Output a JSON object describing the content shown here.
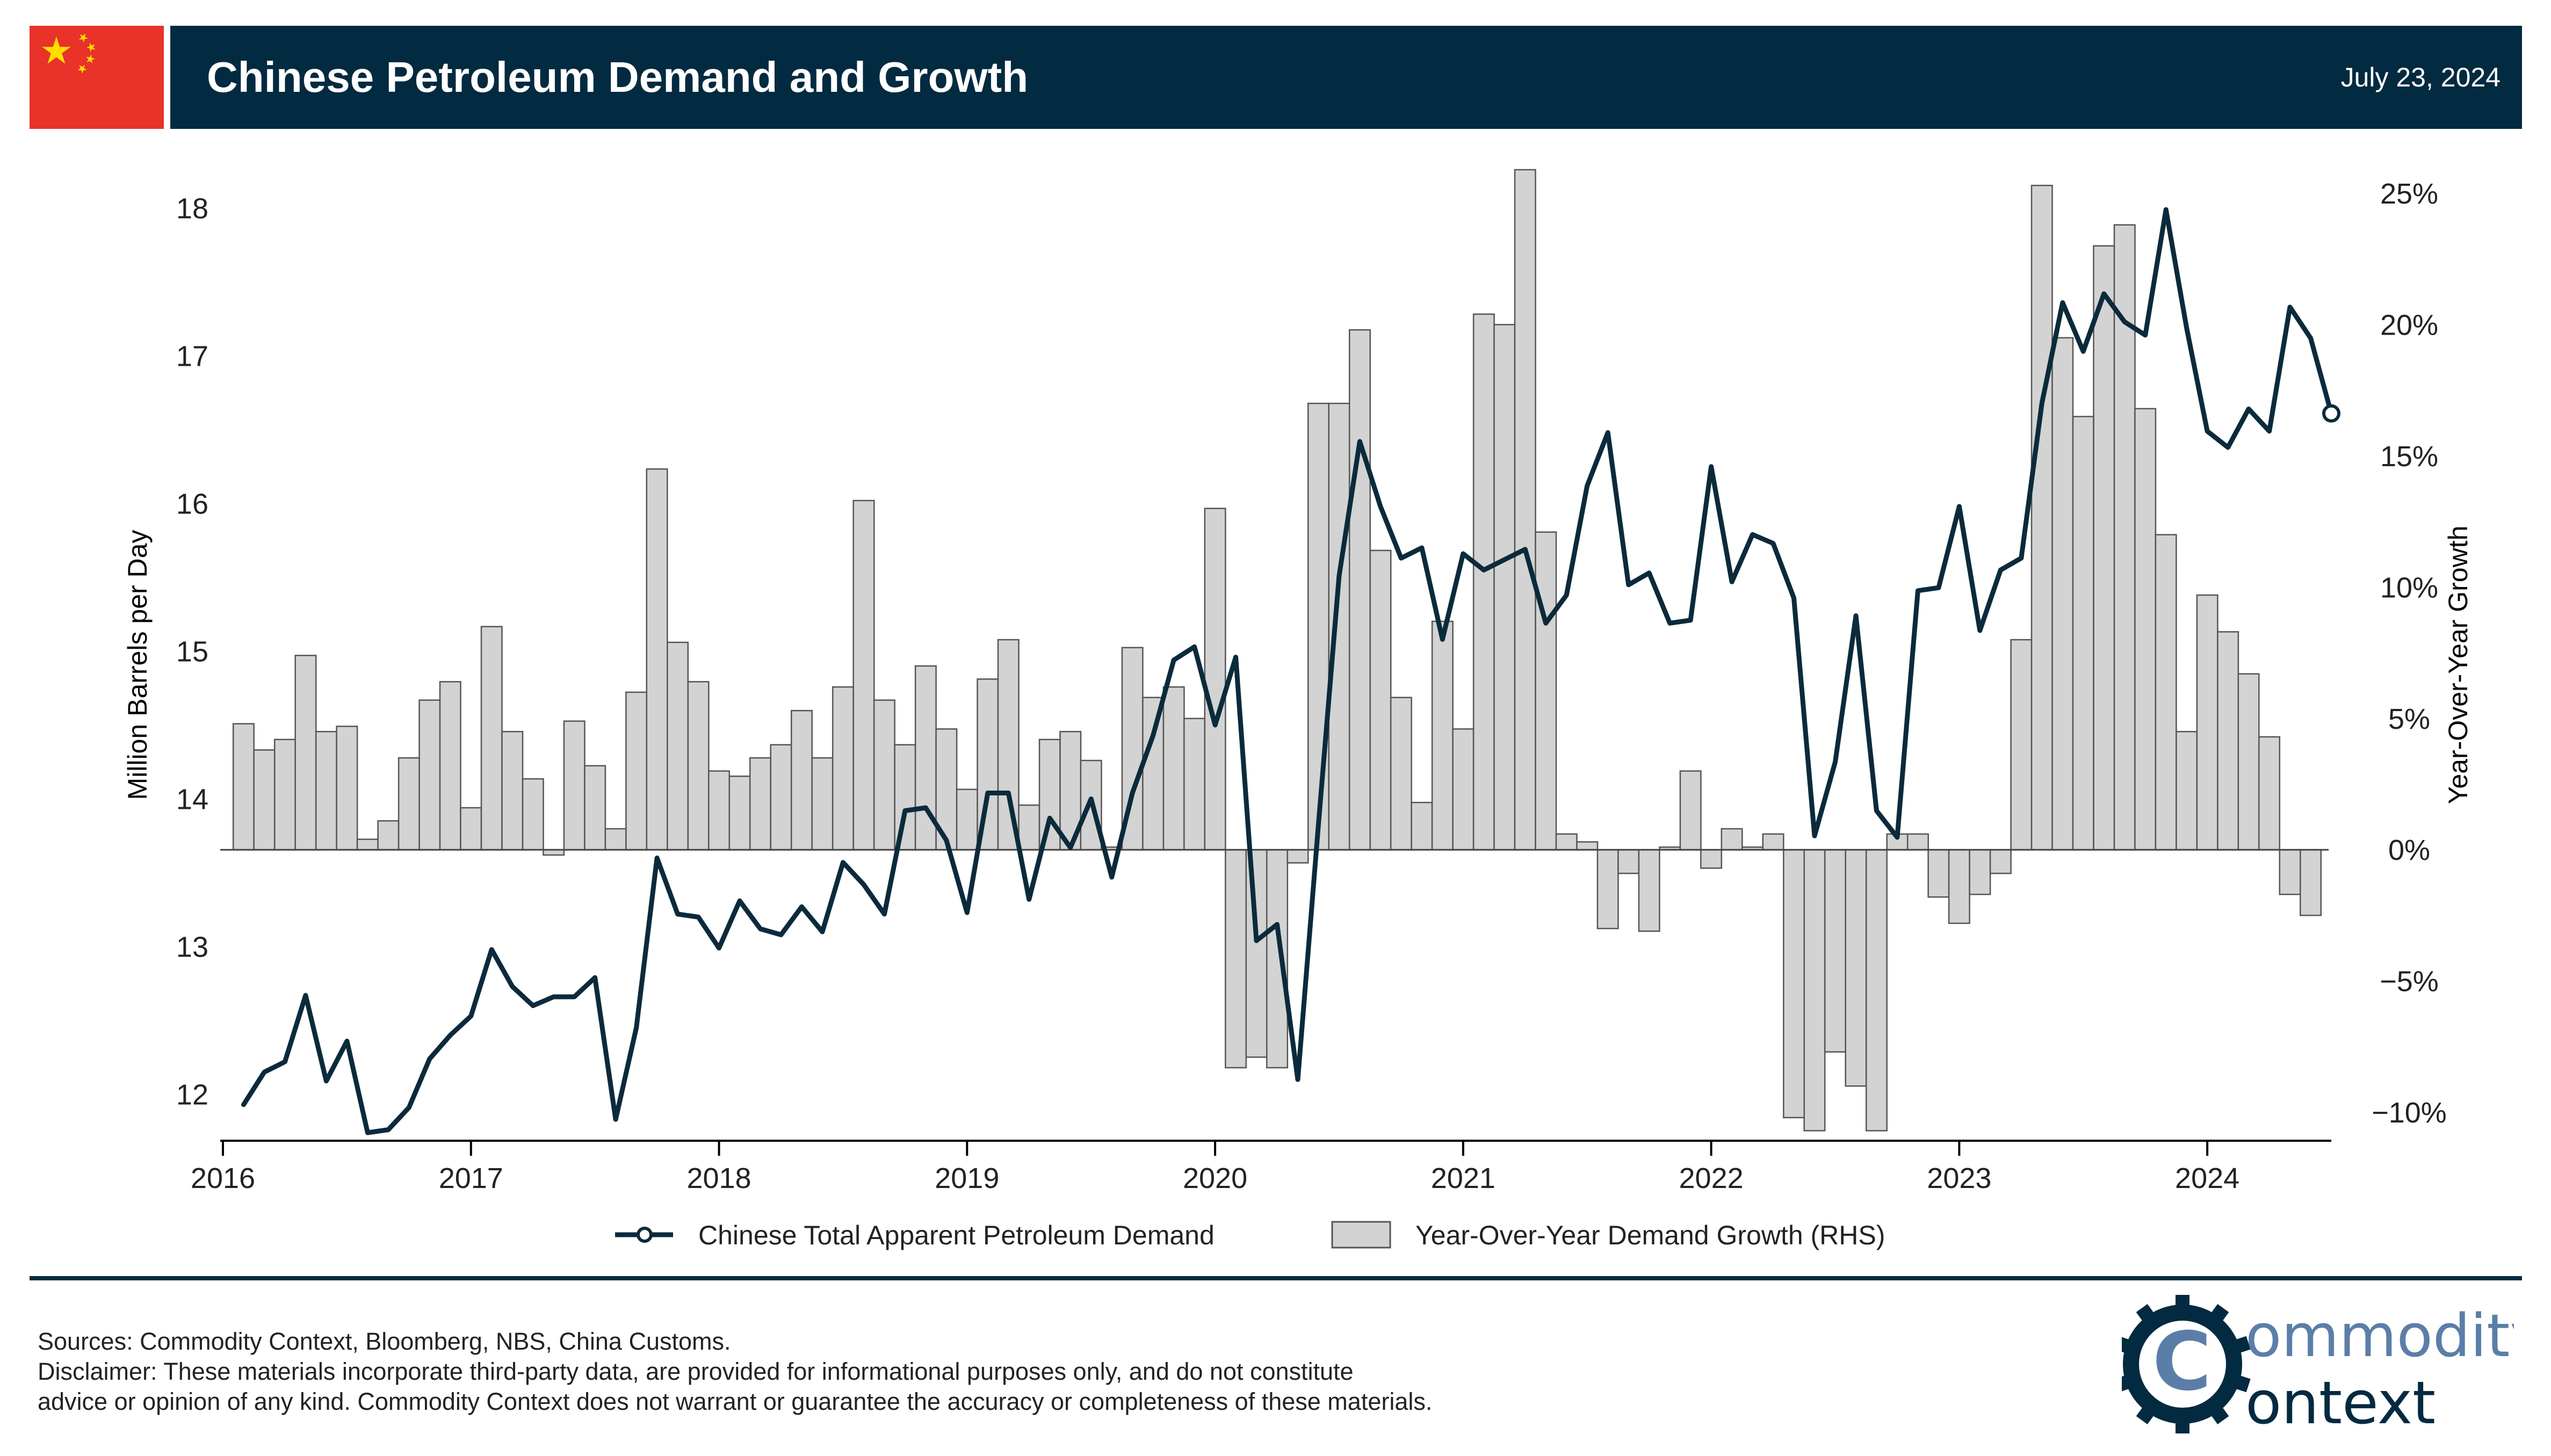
{
  "header": {
    "title": "Chinese Petroleum Demand and Growth",
    "date": "July 23, 2024",
    "flag_icon": "china-flag-icon",
    "accent_color": "#022a40"
  },
  "footer": {
    "sources": "Sources: Commodity Context, Bloomberg, NBS, China Customs.",
    "disclaimer_line1": "Disclaimer: These materials incorporate third-party data, are provided for informational purposes only, and do not constitute",
    "disclaimer_line2": "advice or opinion of any kind. Commodity Context does not warrant or guarantee the accuracy or completeness of these materials."
  },
  "logo": {
    "brand_line1": "ommodity",
    "brand_line2": "ontext",
    "letter": "C",
    "icon": "gear-icon",
    "color_dark": "#022a40",
    "color_light": "#5b7ea8"
  },
  "chart_data": {
    "type": "bar+line",
    "start": "2016-02",
    "xlim": [
      2016.0,
      2024.5
    ],
    "x_ticks": [
      "2016",
      "2017",
      "2018",
      "2019",
      "2020",
      "2021",
      "2022",
      "2023",
      "2024"
    ],
    "ylabel": "Million Barrels per Day",
    "y2label": "Year-Over-Year Growth",
    "ylim": [
      11.7,
      18.1
    ],
    "y_ticks": [
      "12",
      "13",
      "14",
      "15",
      "16",
      "17",
      "18"
    ],
    "y2lim": [
      -11,
      25
    ],
    "y2_ticks": [
      "25%",
      "20%",
      "15%",
      "10%",
      "5%",
      "0%",
      "−5%",
      "−10%"
    ],
    "legend_position": "bottom",
    "line_color": "#0b2a3c",
    "bar_color": "#d3d3d3",
    "bar_edge_color": "#555555",
    "series": [
      {
        "name": "Chinese Total Apparent Petroleum Demand",
        "kind": "line",
        "axis": "left",
        "values": [
          11.93,
          12.15,
          12.22,
          12.67,
          12.09,
          12.36,
          11.74,
          11.76,
          11.91,
          12.24,
          12.4,
          12.53,
          12.98,
          12.73,
          12.6,
          12.66,
          12.66,
          12.79,
          11.83,
          12.45,
          13.6,
          13.22,
          13.2,
          12.99,
          13.31,
          13.12,
          13.08,
          13.27,
          13.1,
          13.57,
          13.42,
          13.22,
          13.92,
          13.94,
          13.72,
          13.23,
          14.04,
          14.04,
          13.32,
          13.87,
          13.67,
          14.0,
          13.47,
          14.04,
          14.43,
          14.94,
          15.03,
          14.5,
          14.96,
          13.04,
          13.15,
          12.1,
          13.83,
          15.51,
          16.42,
          15.98,
          15.63,
          15.7,
          15.08,
          15.66,
          15.55,
          15.62,
          15.69,
          15.19,
          15.38,
          16.12,
          16.48,
          15.45,
          15.53,
          15.19,
          15.21,
          16.25,
          15.47,
          15.79,
          15.73,
          15.36,
          13.75,
          14.25,
          15.24,
          13.92,
          13.74,
          15.41,
          15.43,
          15.98,
          15.14,
          15.55,
          15.63,
          16.68,
          17.36,
          17.03,
          17.42,
          17.23,
          17.14,
          17.99,
          17.19,
          16.49,
          16.38,
          16.64,
          16.49,
          17.33,
          17.12,
          16.61
        ]
      },
      {
        "name": "Year-Over-Year Demand Growth (RHS)",
        "kind": "bar",
        "axis": "right",
        "values": [
          4.8,
          3.8,
          4.2,
          7.4,
          4.5,
          4.7,
          0.4,
          1.1,
          3.5,
          5.7,
          6.4,
          1.6,
          8.5,
          4.5,
          2.7,
          -0.2,
          4.9,
          3.2,
          0.8,
          6.0,
          14.5,
          7.9,
          6.4,
          3.0,
          2.8,
          3.5,
          4.0,
          5.3,
          3.5,
          6.2,
          13.3,
          5.7,
          4.0,
          7.0,
          4.6,
          2.3,
          6.5,
          8.0,
          1.7,
          4.2,
          4.5,
          3.4,
          0.1,
          7.7,
          5.8,
          6.2,
          5.0,
          13.0,
          -8.3,
          -7.9,
          -8.3,
          -0.5,
          17.0,
          17.0,
          19.8,
          11.4,
          5.8,
          1.8,
          8.7,
          4.6,
          20.4,
          20.0,
          25.9,
          12.1,
          0.6,
          0.3,
          -3.0,
          -0.9,
          -3.1,
          0.1,
          3.0,
          -0.7,
          0.8,
          0.1,
          0.6,
          -10.2,
          -10.7,
          -7.7,
          -9.0,
          -10.7,
          0.6,
          0.6,
          -1.8,
          -2.8,
          -1.7,
          -0.9,
          8.0,
          25.3,
          19.5,
          16.5,
          23.0,
          23.8,
          16.8,
          12.0,
          4.5,
          9.7,
          8.3,
          6.7,
          4.3,
          -1.7,
          -2.5
        ]
      }
    ]
  }
}
